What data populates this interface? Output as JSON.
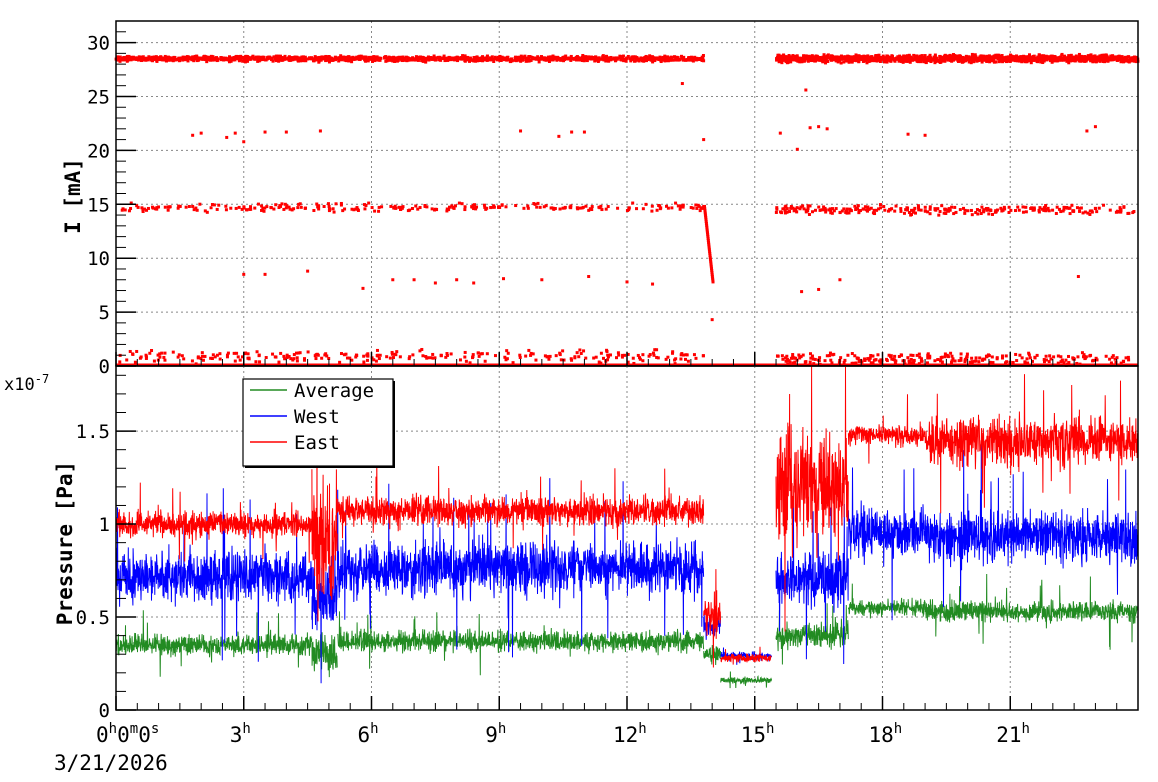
{
  "chart_data": [
    {
      "type": "scatter",
      "ylabel": "I [mA]",
      "xlim": [
        0,
        24
      ],
      "ylim": [
        0,
        32
      ],
      "yticks": [
        0,
        5,
        10,
        15,
        20,
        25,
        30
      ],
      "ytick_labels": [
        "0",
        "5",
        "10",
        "15",
        "20",
        "25",
        "30"
      ],
      "grid": true,
      "series": [
        {
          "color": "#ff0000",
          "marker": "square",
          "gaps_hours": [
            [
              13.9,
              15.5
            ]
          ],
          "bands": [
            {
              "level": 28.5,
              "start": 0.0,
              "end": 13.8,
              "jitter": 0.35
            },
            {
              "level": 28.5,
              "start": 15.5,
              "end": 24.0,
              "jitter": 0.45
            },
            {
              "level": 14.7,
              "start": 0.0,
              "end": 13.8,
              "jitter": 0.5,
              "sparse": true
            },
            {
              "level": 14.5,
              "start": 15.5,
              "end": 24.0,
              "jitter": 0.6,
              "sparse": true
            },
            {
              "level": 0.4,
              "start": 0.0,
              "end": 13.8,
              "jitter": 0.5,
              "sparse": true
            },
            {
              "level": 0.2,
              "start": 15.5,
              "end": 24.0,
              "jitter": 0.3,
              "sparse": true
            }
          ],
          "points": [
            [
              1.8,
              21.4
            ],
            [
              2.0,
              21.6
            ],
            [
              2.6,
              21.2
            ],
            [
              2.8,
              21.6
            ],
            [
              3.5,
              21.7
            ],
            [
              4.0,
              21.7
            ],
            [
              4.8,
              21.8
            ],
            [
              9.5,
              21.8
            ],
            [
              10.4,
              21.3
            ],
            [
              10.7,
              21.7
            ],
            [
              11.0,
              21.7
            ],
            [
              15.6,
              21.6
            ],
            [
              16.3,
              22.1
            ],
            [
              16.5,
              22.2
            ],
            [
              16.7,
              22.0
            ],
            [
              18.6,
              21.5
            ],
            [
              19.0,
              21.4
            ],
            [
              22.8,
              21.8
            ],
            [
              23.0,
              22.2
            ],
            [
              16.0,
              20.1
            ],
            [
              3.0,
              8.5
            ],
            [
              3.5,
              8.5
            ],
            [
              4.5,
              8.8
            ],
            [
              5.8,
              7.2
            ],
            [
              6.5,
              8.0
            ],
            [
              7.0,
              8.0
            ],
            [
              7.5,
              7.7
            ],
            [
              8.0,
              8.0
            ],
            [
              8.4,
              7.7
            ],
            [
              9.1,
              8.1
            ],
            [
              10.0,
              8.0
            ],
            [
              11.1,
              8.3
            ],
            [
              12.0,
              7.8
            ],
            [
              12.6,
              7.6
            ],
            [
              16.1,
              6.9
            ],
            [
              16.5,
              7.1
            ],
            [
              17.0,
              8.0
            ],
            [
              22.6,
              8.3
            ],
            [
              13.3,
              26.2
            ],
            [
              16.2,
              25.6
            ],
            [
              13.8,
              21.0
            ],
            [
              14.0,
              4.3
            ],
            [
              3.0,
              20.8
            ]
          ],
          "decay": {
            "start_hour": 13.82,
            "end_hour": 14.02,
            "from": 14.8,
            "to": 7.8
          }
        }
      ]
    },
    {
      "type": "line",
      "ylabel": "Pressure [Pa]",
      "exponent_label": "x10",
      "exponent_power": "-7",
      "xlim": [
        0,
        24
      ],
      "ylim": [
        0,
        1.85
      ],
      "yticks": [
        0,
        0.5,
        1,
        1.5
      ],
      "ytick_labels": [
        "0",
        "0.5",
        "1",
        "1.5"
      ],
      "xticks": [
        0,
        3,
        6,
        9,
        12,
        15,
        18,
        21
      ],
      "xtick_labels": [
        {
          "h": "0",
          "rest": [
            [
              "h",
              "0"
            ],
            [
              "m",
              "0"
            ],
            [
              "s",
              ""
            ]
          ]
        },
        {
          "h": "3",
          "rest": [
            [
              "h",
              ""
            ]
          ]
        },
        {
          "h": "6",
          "rest": [
            [
              "h",
              ""
            ]
          ]
        },
        {
          "h": "9",
          "rest": [
            [
              "h",
              ""
            ]
          ]
        },
        {
          "h": "12",
          "rest": [
            [
              "h",
              ""
            ]
          ]
        },
        {
          "h": "15",
          "rest": [
            [
              "h",
              ""
            ]
          ]
        },
        {
          "h": "18",
          "rest": [
            [
              "h",
              ""
            ]
          ]
        },
        {
          "h": "21",
          "rest": [
            [
              "h",
              ""
            ]
          ]
        }
      ],
      "x_date": "3/21/2026",
      "grid": true,
      "legend_position": "top-left",
      "series": [
        {
          "name": "Average",
          "color": "#228b22",
          "segments": [
            {
              "start": 0.0,
              "end": 4.6,
              "base": 0.35,
              "noise": 0.05
            },
            {
              "start": 4.6,
              "end": 5.2,
              "base": 0.3,
              "noise": 0.09
            },
            {
              "start": 5.2,
              "end": 13.8,
              "base": 0.37,
              "noise": 0.05
            },
            {
              "start": 13.8,
              "end": 14.2,
              "base": 0.3,
              "noise": 0.04
            },
            {
              "start": 14.2,
              "end": 15.4,
              "base": 0.16,
              "noise": 0.015
            },
            {
              "start": 15.5,
              "end": 17.2,
              "base": 0.4,
              "noise": 0.06
            },
            {
              "start": 17.2,
              "end": 19.0,
              "base": 0.55,
              "noise": 0.04
            },
            {
              "start": 19.0,
              "end": 24.0,
              "base": 0.53,
              "noise": 0.05
            }
          ]
        },
        {
          "name": "West",
          "color": "#0000ff",
          "segments": [
            {
              "start": 0.0,
              "end": 4.6,
              "base": 0.72,
              "noise": 0.12
            },
            {
              "start": 4.6,
              "end": 5.2,
              "base": 0.6,
              "noise": 0.16
            },
            {
              "start": 5.2,
              "end": 13.8,
              "base": 0.76,
              "noise": 0.13
            },
            {
              "start": 13.8,
              "end": 14.2,
              "base": 0.45,
              "noise": 0.06
            },
            {
              "start": 14.2,
              "end": 15.4,
              "base": 0.29,
              "noise": 0.02
            },
            {
              "start": 15.5,
              "end": 17.2,
              "base": 0.7,
              "noise": 0.13
            },
            {
              "start": 17.2,
              "end": 19.0,
              "base": 0.95,
              "noise": 0.12
            },
            {
              "start": 19.0,
              "end": 24.0,
              "base": 0.93,
              "noise": 0.13
            }
          ]
        },
        {
          "name": "East",
          "color": "#ff0000",
          "segments": [
            {
              "start": 0.0,
              "end": 4.6,
              "base": 1.0,
              "noise": 0.06
            },
            {
              "start": 4.6,
              "end": 5.2,
              "base": 0.9,
              "noise": 0.3
            },
            {
              "start": 5.2,
              "end": 13.8,
              "base": 1.07,
              "noise": 0.07
            },
            {
              "start": 13.8,
              "end": 14.2,
              "base": 0.5,
              "noise": 0.1
            },
            {
              "start": 14.2,
              "end": 15.4,
              "base": 0.28,
              "noise": 0.02
            },
            {
              "start": 15.5,
              "end": 17.2,
              "base": 1.2,
              "noise": 0.25
            },
            {
              "start": 17.2,
              "end": 19.0,
              "base": 1.48,
              "noise": 0.05
            },
            {
              "start": 19.0,
              "end": 24.0,
              "base": 1.45,
              "noise": 0.12
            }
          ]
        }
      ]
    }
  ]
}
